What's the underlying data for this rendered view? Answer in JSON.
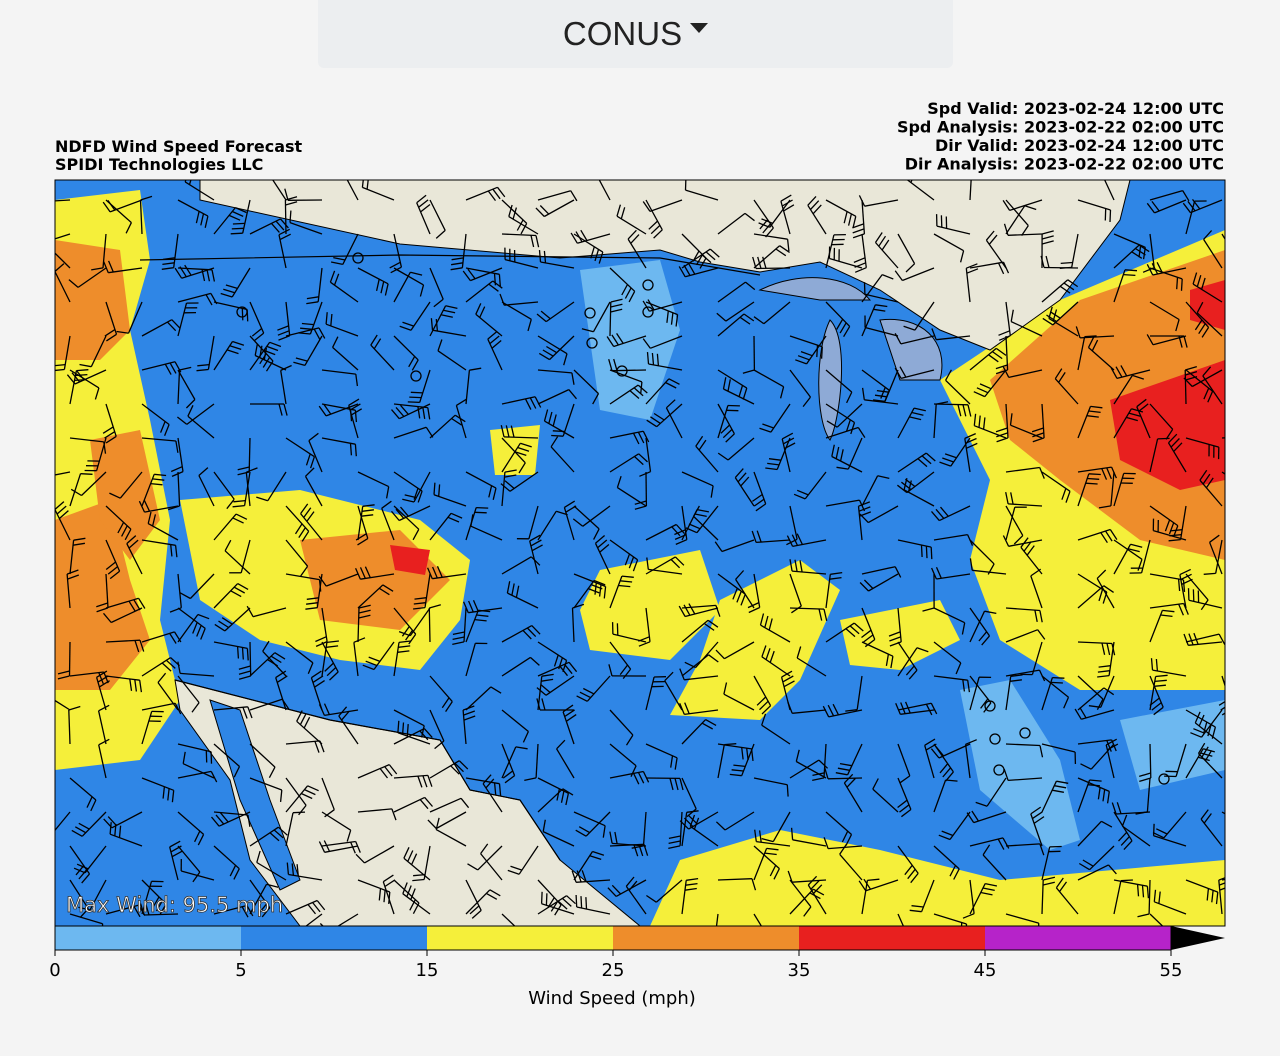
{
  "dropdown": {
    "label": "CONUS"
  },
  "header": {
    "title": "NDFD Wind Speed Forecast",
    "source": "SPIDI Technologies LLC",
    "valid_lines": [
      "Spd Valid: 2023-02-24 12:00 UTC",
      "Spd Analysis: 2023-02-22 02:00 UTC",
      "Dir Valid: 2023-02-24 12:00 UTC",
      "Dir Analysis: 2023-02-22 02:00 UTC"
    ]
  },
  "map": {
    "max_wind": "Max Wind: 95.5 mph"
  },
  "colorbar": {
    "label": "Wind Speed (mph)",
    "ticks": [
      0,
      5,
      15,
      25,
      35,
      45,
      55
    ],
    "colors": [
      "#6db8f0",
      "#2f86e6",
      "#f5ef3a",
      "#ee8d2b",
      "#e8201f",
      "#b623c9"
    ]
  }
}
